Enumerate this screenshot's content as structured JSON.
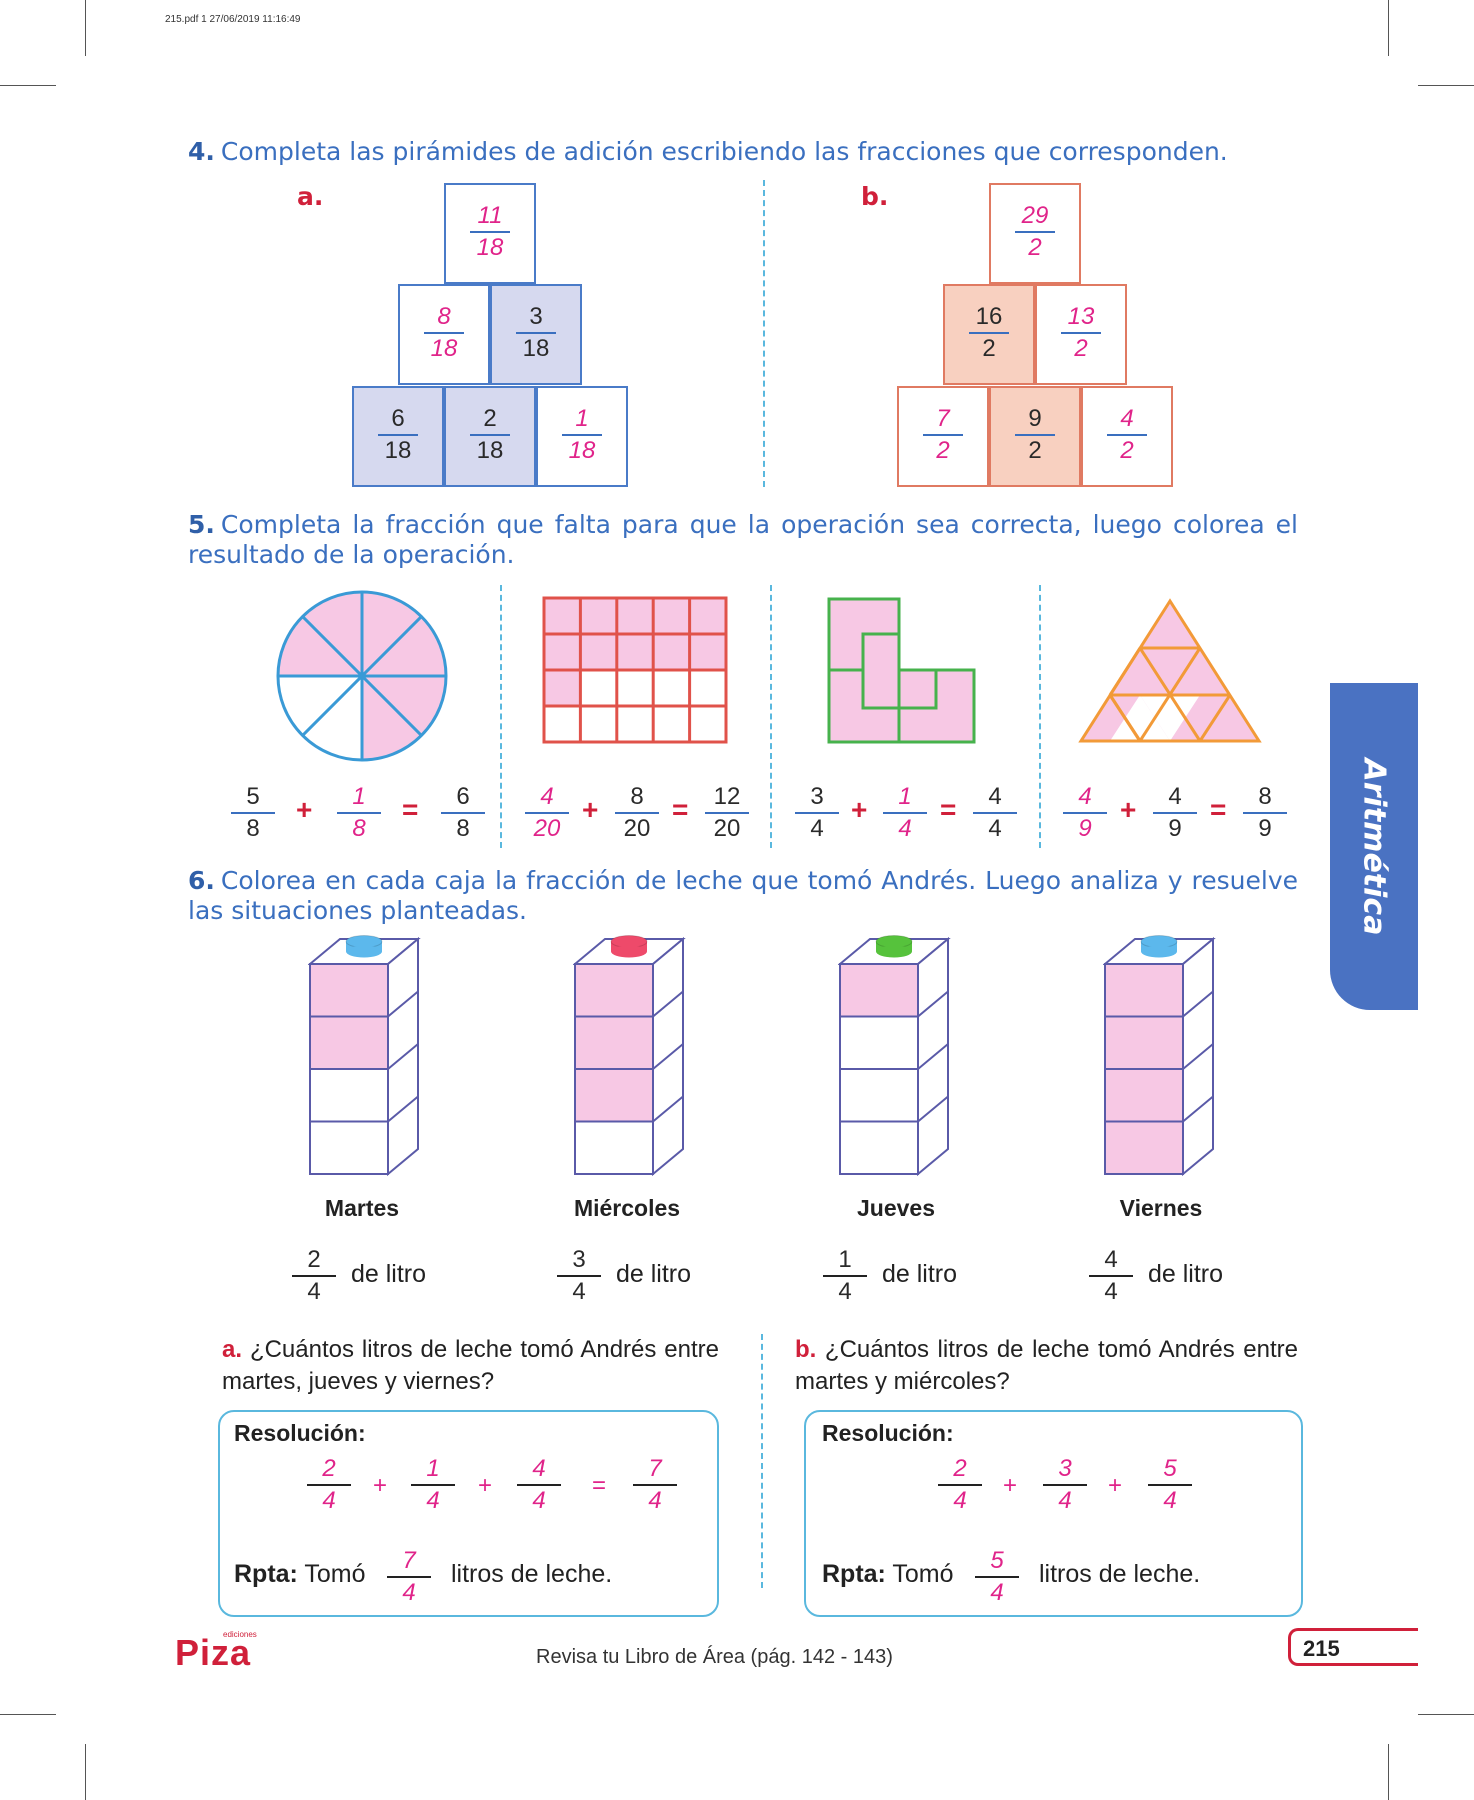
{
  "pdf_header": "215.pdf   1   27/06/2019   11:16:49",
  "q4": {
    "number": "4.",
    "instruction": "Completa las pirámides de adición escribiendo las fracciones que corresponden.",
    "a": {
      "letter": "a.",
      "top": {
        "n": "11",
        "d": "18"
      },
      "mid_left": {
        "n": "8",
        "d": "18"
      },
      "mid_right": {
        "n": "3",
        "d": "18"
      },
      "bot_left": {
        "n": "6",
        "d": "18"
      },
      "bot_mid": {
        "n": "2",
        "d": "18"
      },
      "bot_right": {
        "n": "1",
        "d": "18"
      }
    },
    "b": {
      "letter": "b.",
      "top": {
        "n": "29",
        "d": "2"
      },
      "mid_left": {
        "n": "16",
        "d": "2"
      },
      "mid_right": {
        "n": "13",
        "d": "2"
      },
      "bot_left": {
        "n": "7",
        "d": "2"
      },
      "bot_mid": {
        "n": "9",
        "d": "2"
      },
      "bot_right": {
        "n": "4",
        "d": "2"
      }
    }
  },
  "q5": {
    "number": "5.",
    "instruction": "Completa la fracción que falta para que la operación sea correcta, luego colorea el resultado de la operación.",
    "plus": "+",
    "equals": "=",
    "circle_eq": {
      "a": {
        "n": "5",
        "d": "8"
      },
      "b": {
        "n": "1",
        "d": "8"
      },
      "r": {
        "n": "6",
        "d": "8"
      }
    },
    "grid_eq": {
      "a": {
        "n": "4",
        "d": "20"
      },
      "b": {
        "n": "8",
        "d": "20"
      },
      "r": {
        "n": "12",
        "d": "20"
      }
    },
    "lshape_eq": {
      "a": {
        "n": "3",
        "d": "4"
      },
      "b": {
        "n": "1",
        "d": "4"
      },
      "r": {
        "n": "4",
        "d": "4"
      }
    },
    "triangle_eq": {
      "a": {
        "n": "4",
        "d": "9"
      },
      "b": {
        "n": "4",
        "d": "9"
      },
      "r": {
        "n": "8",
        "d": "9"
      }
    }
  },
  "q6": {
    "number": "6.",
    "instruction": "Colorea en cada caja la fracción de leche que tomó Andrés. Luego analiza y resuelve las situaciones planteadas.",
    "unit": "de litro",
    "boxes": [
      {
        "day": "Martes",
        "n": "2",
        "d": "4",
        "filled_fraction": 0.5,
        "cap": "#5cb8ec"
      },
      {
        "day": "Miércoles",
        "n": "3",
        "d": "4",
        "filled_fraction": 0.75,
        "cap": "#ee4a6a"
      },
      {
        "day": "Jueves",
        "n": "1",
        "d": "4",
        "filled_fraction": 0.25,
        "cap": "#56c23c"
      },
      {
        "day": "Viernes",
        "n": "4",
        "d": "4",
        "filled_fraction": 1.0,
        "cap": "#5cb8ec"
      }
    ],
    "a": {
      "letter": "a.",
      "question": "¿Cuántos litros de leche tomó Andrés entre martes, jueves y viernes?",
      "resolucion": "Resolución:",
      "terms": [
        {
          "n": "2",
          "d": "4"
        },
        {
          "n": "1",
          "d": "4"
        },
        {
          "n": "4",
          "d": "4"
        }
      ],
      "result": {
        "n": "7",
        "d": "4"
      },
      "plus": "+",
      "equals": "=",
      "rpta_label": "Rpta:",
      "rpta_pre": "Tomó",
      "rpta_post": "litros de leche."
    },
    "b": {
      "letter": "b.",
      "question": "¿Cuántos litros de leche tomó Andrés entre martes y miércoles?",
      "resolucion": "Resolución:",
      "terms": [
        {
          "n": "2",
          "d": "4"
        },
        {
          "n": "3",
          "d": "4"
        },
        {
          "n": "5",
          "d": "4"
        }
      ],
      "plus": "+",
      "rpta_label": "Rpta:",
      "rpta_pre": "Tomó",
      "rpta_answer": {
        "n": "5",
        "d": "4"
      },
      "rpta_post": "litros de leche."
    }
  },
  "side_tab": "Aritmética",
  "footer": {
    "logo_small": "ediciones",
    "logo": "Piza",
    "review_text": "Revisa tu Libro de Área (pág. 142 - 143)",
    "page_number": "215"
  },
  "colors": {
    "title_blue": "#3a6fbf",
    "accent_red": "#d0203a",
    "answer_pink": "#e0248a",
    "fill_pink": "#f7c8e4",
    "tab_blue": "#4a72c2"
  }
}
